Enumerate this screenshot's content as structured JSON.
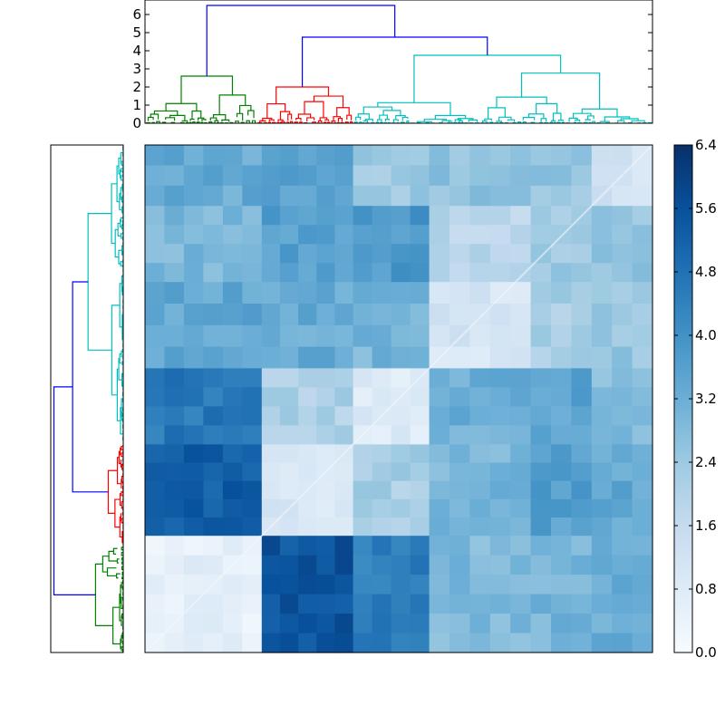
{
  "chart_data": {
    "type": "heatmap",
    "title": "",
    "description_free": true,
    "top_dendrogram": {
      "y_ticks": [
        0,
        1,
        2,
        3,
        4,
        5,
        6
      ],
      "ylim": [
        0,
        6.8
      ],
      "clusters": [
        {
          "name": "cluster-a",
          "color": "#008000",
          "leaf_range": [
            0,
            0.22
          ]
        },
        {
          "name": "cluster-b",
          "color": "#ff0000",
          "leaf_range": [
            0.22,
            0.41
          ]
        },
        {
          "name": "cluster-c",
          "color": "#00bfbf",
          "leaf_range": [
            0.41,
            1.0
          ]
        }
      ],
      "merges": {
        "root_height": 6.5,
        "bc_height": 4.75,
        "a_top": 2.6,
        "b_top": 2.0,
        "c_top": 3.75
      },
      "link_color": "#0000ff"
    },
    "left_dendrogram": {
      "clusters": [
        {
          "name": "cluster-c",
          "color": "#00bfbf",
          "leaf_range": [
            0,
            0.59
          ]
        },
        {
          "name": "cluster-b",
          "color": "#ff0000",
          "leaf_range": [
            0.59,
            0.79
          ]
        },
        {
          "name": "cluster-a",
          "color": "#008000",
          "leaf_range": [
            0.79,
            1.0
          ]
        }
      ],
      "link_color": "#0000ff"
    },
    "heatmap": {
      "blocks_x": [
        0,
        0.23,
        0.41,
        0.56,
        0.76,
        0.88,
        1.0
      ],
      "blocks_y": [
        0,
        0.12,
        0.27,
        0.44,
        0.59,
        0.77,
        1.0
      ],
      "values": [
        [
          3.3,
          3.5,
          2.4,
          2.6,
          2.5,
          1.2
        ],
        [
          2.9,
          3.6,
          3.8,
          1.9,
          2.4,
          2.6
        ],
        [
          3.4,
          3.3,
          3.0,
          1.1,
          2.2,
          2.5
        ],
        [
          4.6,
          2.1,
          0.8,
          3.2,
          3.5,
          2.8
        ],
        [
          5.3,
          1.0,
          2.2,
          3.0,
          3.6,
          3.4
        ],
        [
          0.6,
          5.5,
          4.5,
          2.9,
          3.0,
          3.2
        ]
      ]
    },
    "colorbar": {
      "ticks": [
        0.0,
        0.8,
        1.6,
        2.4,
        3.2,
        4.0,
        4.8,
        5.6,
        6.4
      ],
      "tick_labels": [
        "0.0",
        "0.8",
        "1.6",
        "2.4",
        "3.2",
        "4.0",
        "4.8",
        "5.6",
        "6.4"
      ],
      "vmin": 0.0,
      "vmax": 6.4,
      "colormap": "Blues",
      "stops": [
        "#f7fbff",
        "#deebf7",
        "#c6dbef",
        "#9ecae1",
        "#6baed6",
        "#4292c6",
        "#2171b5",
        "#08519c",
        "#08306b"
      ]
    }
  }
}
